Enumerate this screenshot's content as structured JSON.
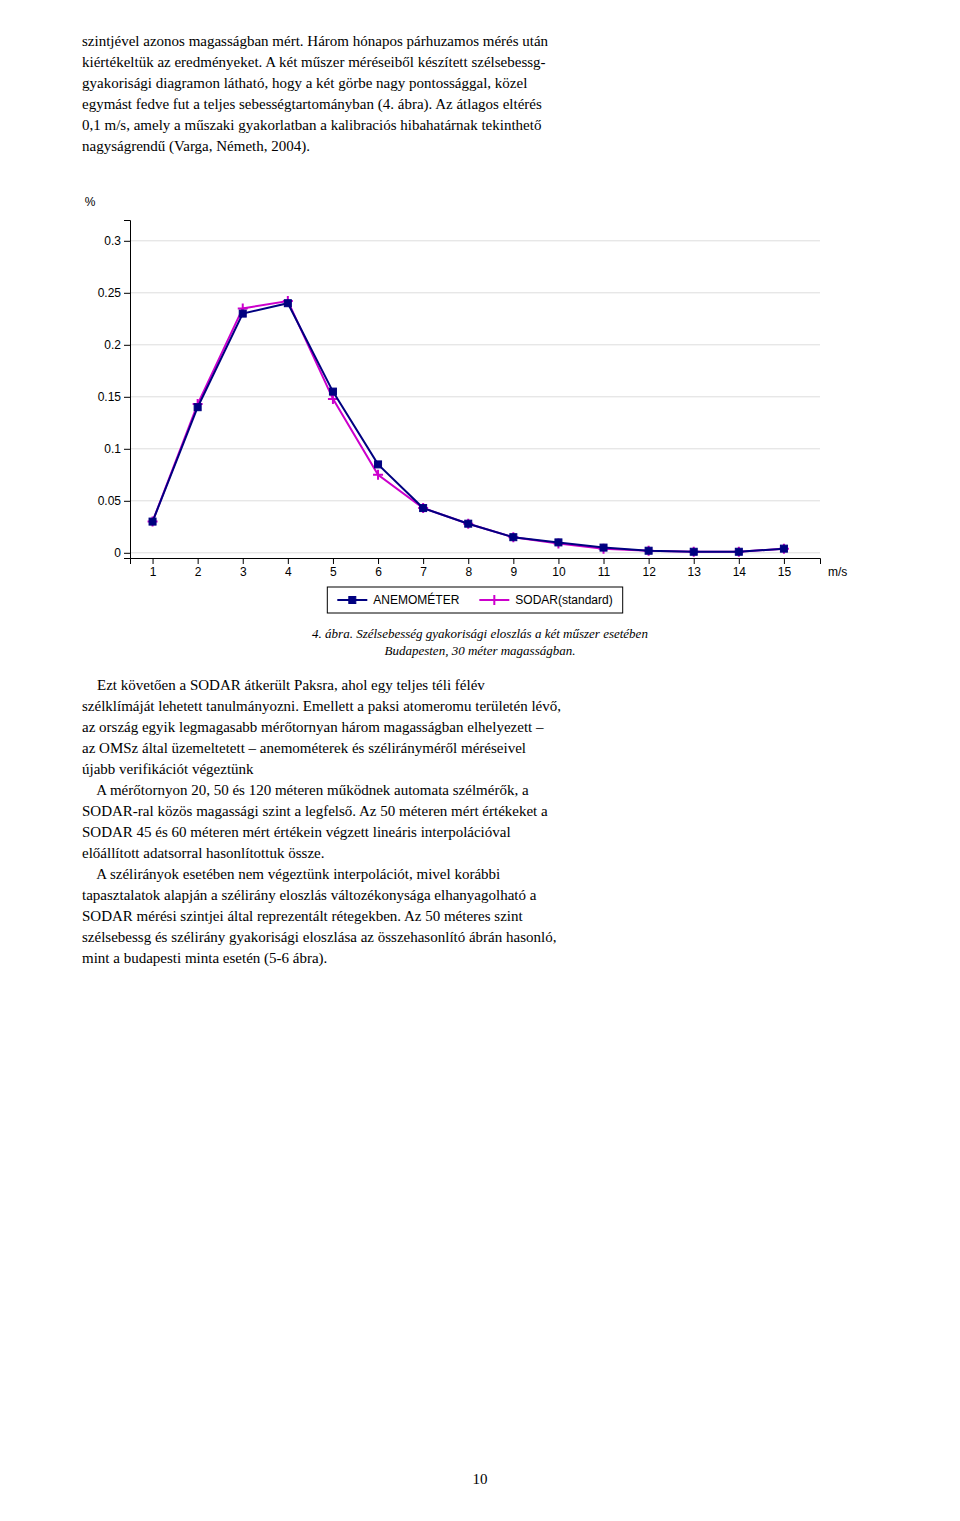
{
  "chart_data": {
    "type": "line",
    "x": [
      1,
      2,
      3,
      4,
      5,
      6,
      7,
      8,
      9,
      10,
      11,
      12,
      13,
      14,
      15
    ],
    "series": [
      {
        "name": "ANEMOMÉTER",
        "color": "#000080",
        "marker": "square",
        "values": [
          0.03,
          0.14,
          0.23,
          0.24,
          0.155,
          0.085,
          0.043,
          0.028,
          0.015,
          0.01,
          0.005,
          0.002,
          0.001,
          0.001,
          0.004
        ]
      },
      {
        "name": "SODAR(standard)",
        "color": "#CC00CC",
        "marker": "plus",
        "values": [
          0.03,
          0.143,
          0.235,
          0.242,
          0.148,
          0.075,
          0.043,
          0.028,
          0.015,
          0.009,
          0.004,
          0.002,
          0.001,
          0.001,
          0.004
        ]
      }
    ],
    "xlabel": "m/s",
    "ylabel": "%",
    "xlim": [
      0.5,
      15.8
    ],
    "ylim": [
      -0.005,
      0.32
    ],
    "xticks": [
      1,
      2,
      3,
      4,
      5,
      6,
      7,
      8,
      9,
      10,
      11,
      12,
      13,
      14,
      15
    ],
    "yticks": [
      0,
      0.05,
      0.1,
      0.15,
      0.2,
      0.25,
      0.3
    ],
    "grid": "y",
    "legend": "bottom"
  },
  "text_before": [
    "szintjével azonos magasságban mért. Három hónapos párhuzamos mérés után",
    "kiértékeltük az eredményeket. A két műszer méréseiből készített szélsebessg-",
    "gyakorisági diagramon látható, hogy a két görbe nagy pontossággal, közel",
    "egymást fedve fut a teljes sebességtartományban (4. ábra). Az átlagos eltérés",
    "0,1 m/s, amely a műszaki gyakorlatban a kalibraciós hibahatárnak tekinthető",
    "nagyságrendű (Varga, Németh, 2004)."
  ],
  "caption": [
    "4. ábra. Szélsebesség gyakorisági eloszlás a két műszer esetében",
    "Budapesten, 30 méter magasságban."
  ],
  "text_after": [
    "    Ezt követően a SODAR átkerült Paksra, ahol egy teljes téli félév",
    "szélklímáját lehetett tanulmányozni. Emellett a paksi atomeromu területén lévő,",
    "az ország egyik legmagasabb mérőtornyan három magasságban elhelyezett –",
    "az OMSz által üzemeltetett – anemométerek és szélirányméről méréseivel",
    "újabb verifikációt végeztünk",
    "    A mérőtornyon 20, 50 és 120 méteren működnek automata szélmérők, a",
    "SODAR-ral közös magassági szint a legfelső. Az 50 méteren mért értékeket a",
    "SODAR 45 és 60 méteren mért értékein végzett lineáris interpolációval",
    "előállított adatsorral hasonlítottuk össze.",
    "    A szélirányok esetében nem végeztünk interpolációt, mivel korábbi",
    "tapasztalatok alapján a szélirány eloszlás változékonysága elhanyagolható a",
    "SODAR mérési szintjei által reprezentált rétegekben. Az 50 méteres szint",
    "szélsebessg és szélirány gyakorisági eloszlása az összehasonlító ábrán hasonló,",
    "mint a budapesti minta esetén (5-6 ábra)."
  ],
  "page_number": "10"
}
